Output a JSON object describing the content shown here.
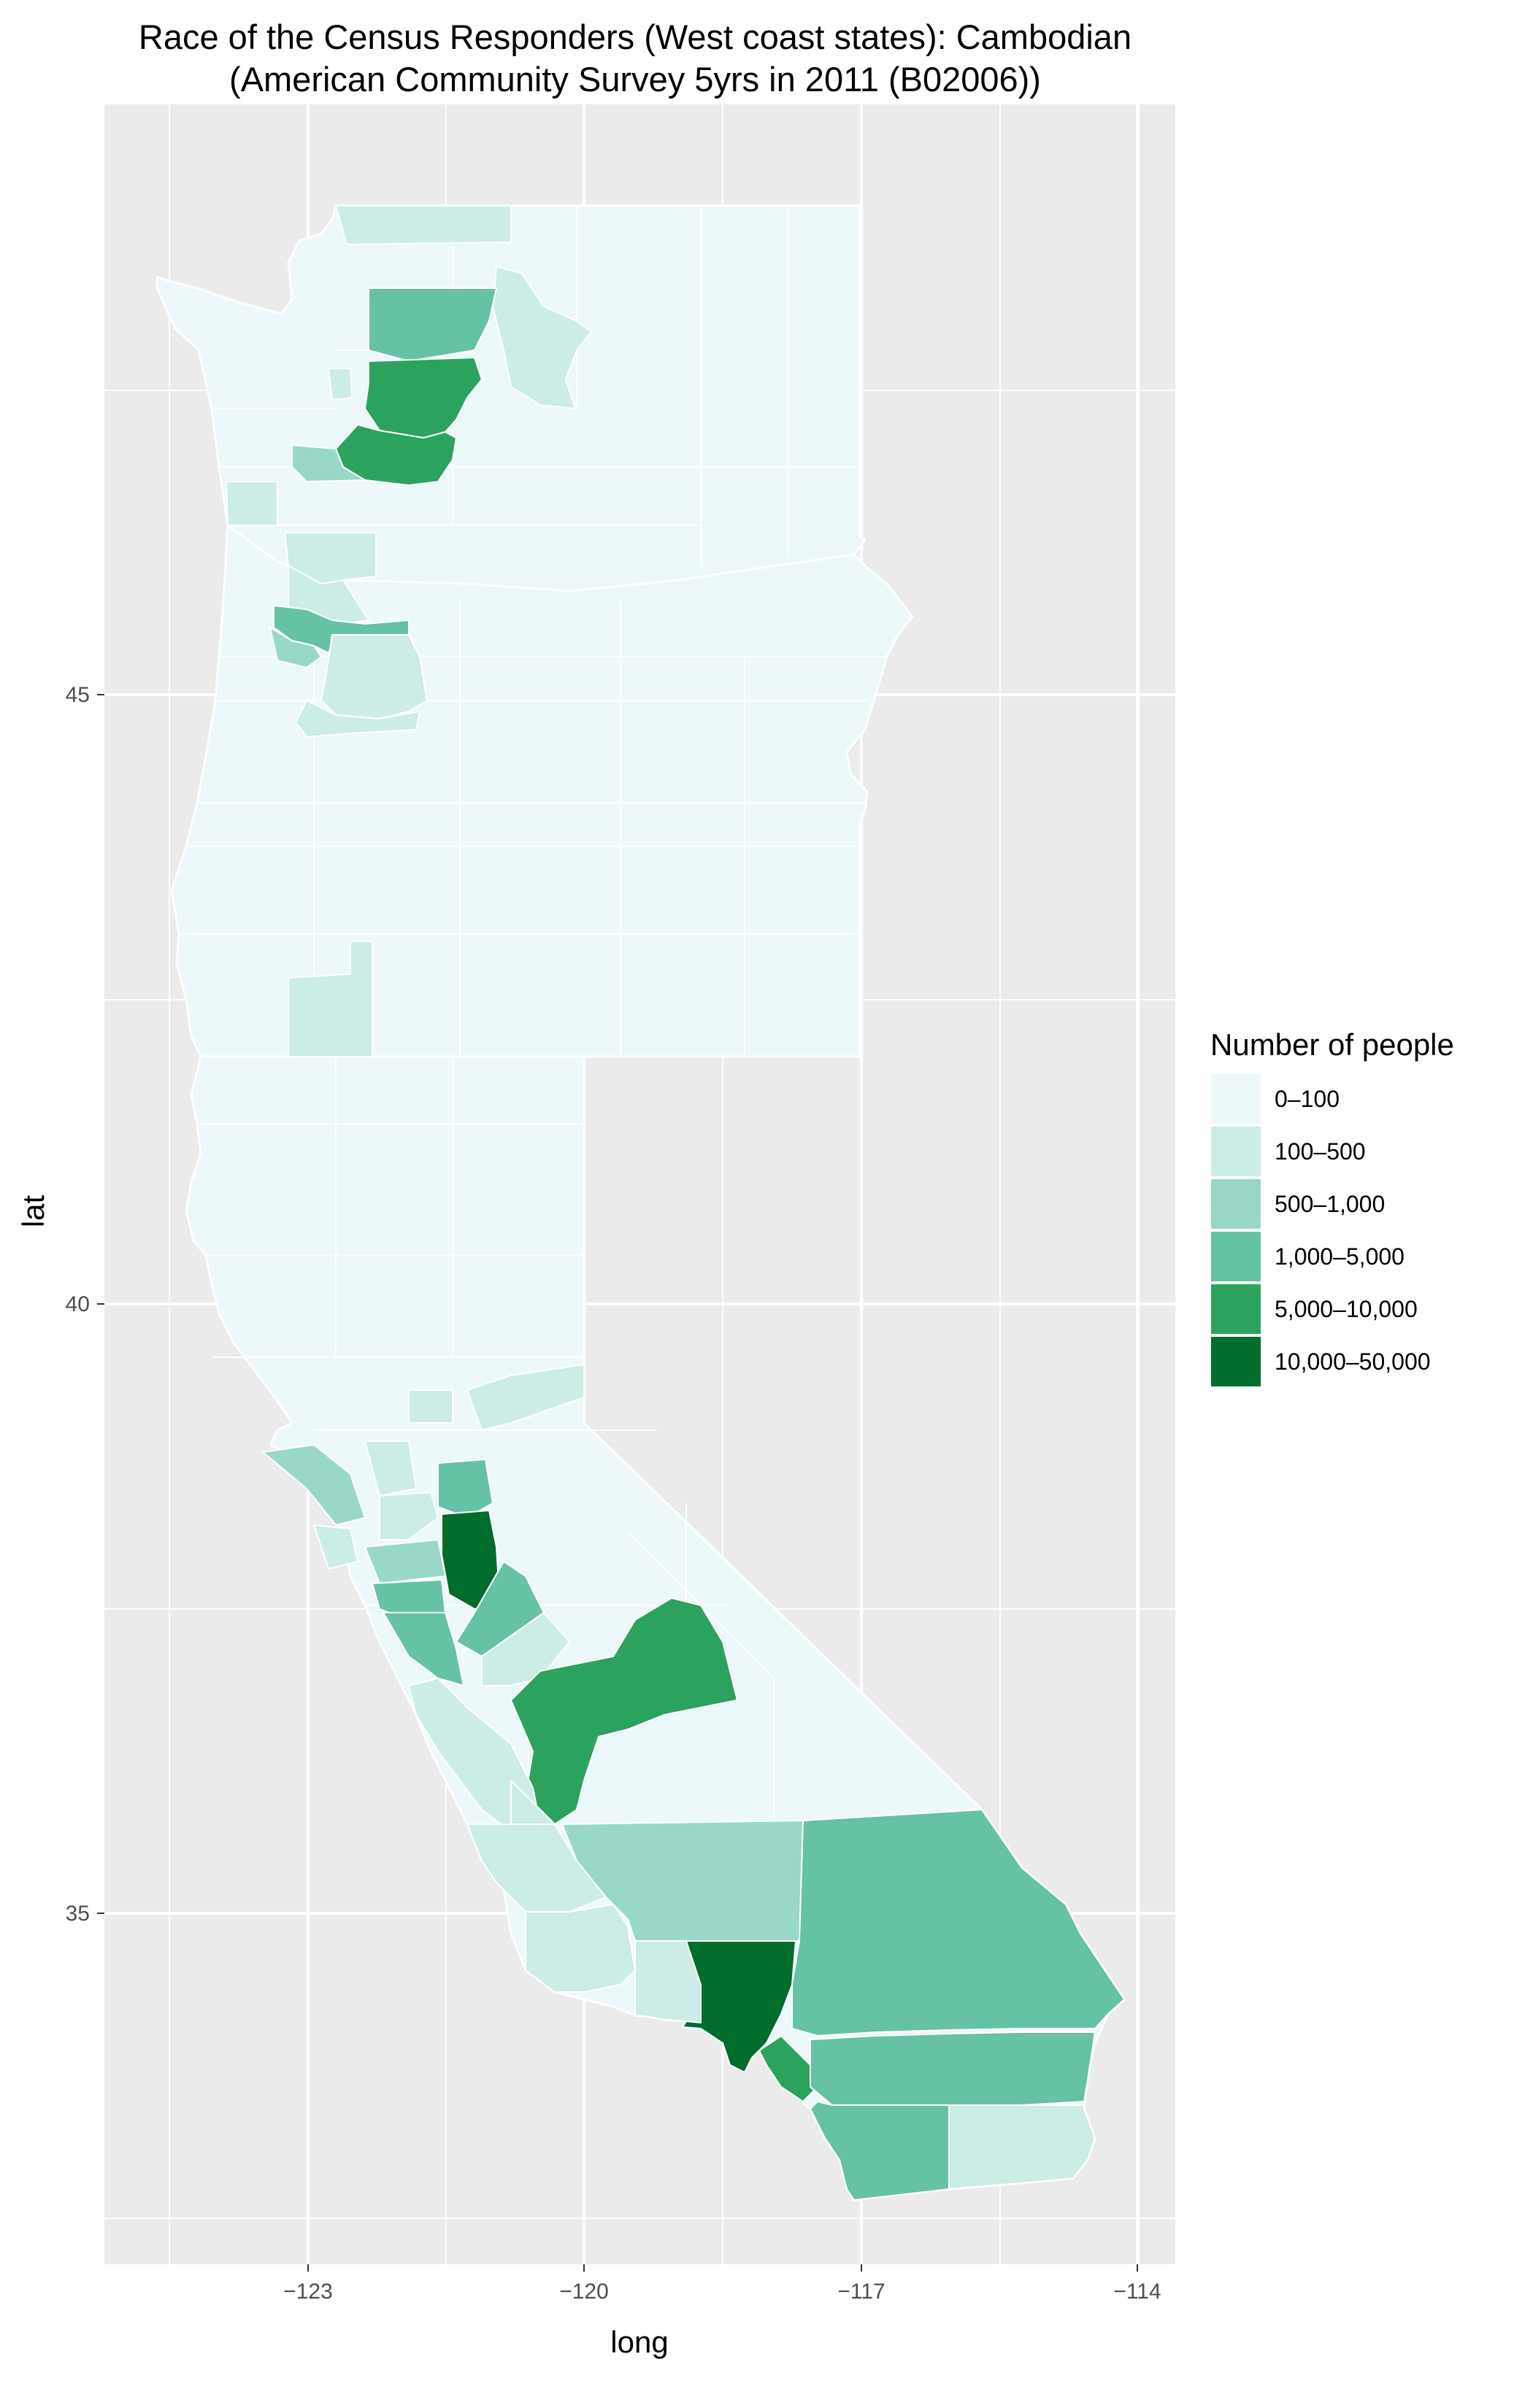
{
  "title": {
    "line1": "Race of the Census Responders (West coast states): Cambodian",
    "line2": "(American Community Survey 5yrs in 2011 (B02006))"
  },
  "axes": {
    "x_title": "long",
    "y_title": "lat",
    "x_ticks": [
      -123,
      -120,
      -117,
      -114
    ],
    "x_tick_labels": [
      "−123",
      "−120",
      "−117",
      "−114"
    ],
    "y_ticks": [
      35,
      40,
      45
    ],
    "y_tick_labels": [
      "35",
      "40",
      "45"
    ]
  },
  "legend": {
    "title": "Number of people",
    "placement": "right",
    "items": [
      {
        "label": "0–100",
        "color": "#edf8fb"
      },
      {
        "label": "100–500",
        "color": "#ccece6"
      },
      {
        "label": "500–1,000",
        "color": "#99d8c9"
      },
      {
        "label": "1,000–5,000",
        "color": "#66c2a4"
      },
      {
        "label": "5,000–10,000",
        "color": "#2ca25f"
      },
      {
        "label": "10,000–50,000",
        "color": "#006d2c"
      }
    ]
  },
  "colors": {
    "panel_background": "#ebebeb",
    "grid": "#ffffff",
    "county_border": "#ffffff"
  },
  "map": {
    "states": [
      "Washington",
      "Oregon",
      "California"
    ],
    "highlighted_regions": [
      {
        "name": "King County, WA",
        "bin": "5,000–10,000"
      },
      {
        "name": "Pierce County, WA",
        "bin": "5,000–10,000"
      },
      {
        "name": "Snohomish County, WA",
        "bin": "1,000–5,000"
      },
      {
        "name": "Multnomah County, OR",
        "bin": "1,000–5,000"
      },
      {
        "name": "Sacramento County, CA",
        "bin": "1,000–5,000"
      },
      {
        "name": "San Joaquin County, CA",
        "bin": "10,000–50,000"
      },
      {
        "name": "Stanislaus County, CA",
        "bin": "1,000–5,000"
      },
      {
        "name": "Santa Clara County, CA",
        "bin": "1,000–5,000"
      },
      {
        "name": "Fresno County, CA",
        "bin": "5,000–10,000"
      },
      {
        "name": "Los Angeles County, CA",
        "bin": "10,000–50,000"
      },
      {
        "name": "Orange County, CA",
        "bin": "5,000–10,000"
      },
      {
        "name": "San Bernardino County, CA",
        "bin": "1,000–5,000"
      },
      {
        "name": "Riverside County, CA",
        "bin": "1,000–5,000"
      },
      {
        "name": "San Diego County, CA",
        "bin": "1,000–5,000"
      }
    ]
  }
}
